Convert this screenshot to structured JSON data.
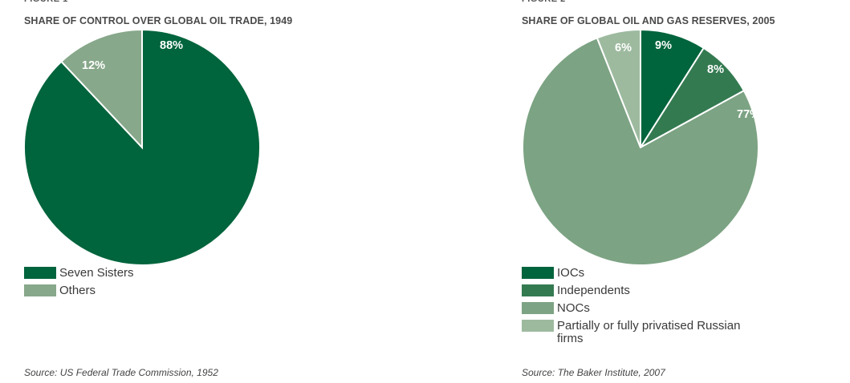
{
  "chart_data": [
    {
      "type": "pie",
      "title": "SHARE OF CONTROL OVER GLOBAL OIL TRADE, 1949",
      "categories": [
        "Seven Sisters",
        "Others"
      ],
      "values": [
        88,
        12
      ],
      "labels": [
        "88%",
        "12%"
      ],
      "colors": [
        "#00643c",
        "#87a88a"
      ],
      "legend": [
        "Seven Sisters",
        "Others"
      ],
      "legend_position": "bottom-left",
      "source": "Source: US Federal Trade Commission, 1952"
    },
    {
      "type": "pie",
      "title": "SHARE OF GLOBAL OIL AND GAS RESERVES, 2005",
      "categories": [
        "IOCs",
        "Independents",
        "NOCs",
        "Partially or fully privatised Russian firms"
      ],
      "values": [
        9,
        8,
        77,
        6
      ],
      "labels": [
        "9%",
        "8%",
        "77%",
        "6%"
      ],
      "colors": [
        "#00643c",
        "#347a51",
        "#7ca383",
        "#9dba9f"
      ],
      "legend": [
        "IOCs",
        "Independents",
        "NOCs",
        "Partially or fully privatised Russian firms"
      ],
      "legend_position": "bottom-left",
      "source": "Source: The Baker Institute, 2007"
    }
  ]
}
